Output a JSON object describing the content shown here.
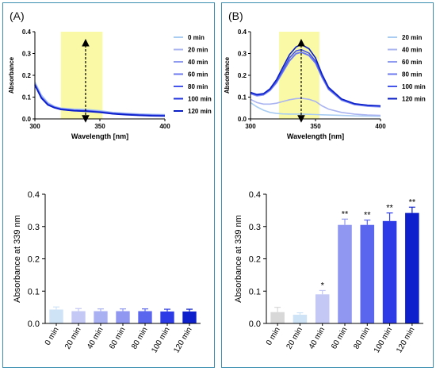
{
  "panels": [
    {
      "label": "(A)"
    },
    {
      "label": "(B)"
    }
  ],
  "chart_data": [
    {
      "id": "A-spectrum",
      "type": "line",
      "xlabel": "Wavelength [nm]",
      "ylabel": "Absorbance",
      "xlim": [
        300,
        400
      ],
      "ylim": [
        0,
        0.4
      ],
      "xticks": [
        300,
        350,
        400
      ],
      "yticks": [
        0.0,
        0.1,
        0.2,
        0.3,
        0.4
      ],
      "highlight_band": [
        320,
        352
      ],
      "arrow_x": 339,
      "arrow_range": [
        0.0,
        0.35
      ],
      "x": [
        300,
        305,
        310,
        315,
        320,
        330,
        339,
        350,
        360,
        370,
        380,
        390,
        400
      ],
      "series": [
        {
          "name": "0 min",
          "color": "#a9cdf2",
          "values": [
            0.17,
            0.11,
            0.075,
            0.058,
            0.05,
            0.045,
            0.044,
            0.038,
            0.03,
            0.026,
            0.023,
            0.021,
            0.02
          ]
        },
        {
          "name": "20 min",
          "color": "#aab4f0",
          "values": [
            0.165,
            0.105,
            0.072,
            0.056,
            0.048,
            0.042,
            0.04,
            0.035,
            0.028,
            0.024,
            0.021,
            0.019,
            0.018
          ]
        },
        {
          "name": "40 min",
          "color": "#8f9bf0",
          "values": [
            0.162,
            0.102,
            0.07,
            0.055,
            0.047,
            0.041,
            0.039,
            0.034,
            0.027,
            0.023,
            0.02,
            0.018,
            0.017
          ]
        },
        {
          "name": "60 min",
          "color": "#6b78f0",
          "values": [
            0.16,
            0.1,
            0.068,
            0.054,
            0.046,
            0.04,
            0.038,
            0.033,
            0.026,
            0.022,
            0.019,
            0.017,
            0.016
          ]
        },
        {
          "name": "80 min",
          "color": "#4455ee",
          "values": [
            0.158,
            0.098,
            0.066,
            0.053,
            0.045,
            0.039,
            0.037,
            0.032,
            0.025,
            0.021,
            0.018,
            0.016,
            0.015
          ]
        },
        {
          "name": "100 min",
          "color": "#2233e0",
          "values": [
            0.156,
            0.096,
            0.065,
            0.052,
            0.044,
            0.038,
            0.036,
            0.031,
            0.024,
            0.02,
            0.017,
            0.015,
            0.014
          ]
        },
        {
          "name": "120 min",
          "color": "#0a1fc8",
          "values": [
            0.155,
            0.095,
            0.064,
            0.051,
            0.043,
            0.037,
            0.035,
            0.03,
            0.023,
            0.019,
            0.016,
            0.014,
            0.013
          ]
        }
      ]
    },
    {
      "id": "B-spectrum",
      "type": "line",
      "xlabel": "Wavelength [nm]",
      "ylabel": "Absorbance",
      "xlim": [
        300,
        400
      ],
      "ylim": [
        0,
        0.4
      ],
      "xticks": [
        300,
        350,
        400
      ],
      "yticks": [
        0.0,
        0.1,
        0.2,
        0.3,
        0.4
      ],
      "highlight_band": [
        322,
        353
      ],
      "arrow_x": 339,
      "arrow_range": [
        0.0,
        0.35
      ],
      "x": [
        300,
        305,
        310,
        315,
        320,
        325,
        330,
        335,
        339,
        345,
        350,
        355,
        360,
        370,
        380,
        390,
        400
      ],
      "series": [
        {
          "name": "20 min",
          "color": "#a9cdf2",
          "values": [
            0.075,
            0.055,
            0.04,
            0.03,
            0.025,
            0.023,
            0.022,
            0.022,
            0.022,
            0.021,
            0.02,
            0.019,
            0.018,
            0.016,
            0.014,
            0.013,
            0.012
          ]
        },
        {
          "name": "40 min",
          "color": "#aab4f0",
          "values": [
            0.09,
            0.075,
            0.068,
            0.068,
            0.072,
            0.08,
            0.088,
            0.093,
            0.095,
            0.09,
            0.08,
            0.06,
            0.045,
            0.03,
            0.022,
            0.018,
            0.016
          ]
        },
        {
          "name": "60 min",
          "color": "#8f9bf0",
          "values": [
            0.115,
            0.105,
            0.11,
            0.13,
            0.165,
            0.215,
            0.265,
            0.298,
            0.305,
            0.29,
            0.255,
            0.19,
            0.135,
            0.085,
            0.065,
            0.058,
            0.055
          ]
        },
        {
          "name": "80 min",
          "color": "#6b78f0",
          "values": [
            0.118,
            0.108,
            0.112,
            0.132,
            0.168,
            0.218,
            0.268,
            0.3,
            0.307,
            0.292,
            0.257,
            0.192,
            0.137,
            0.087,
            0.067,
            0.06,
            0.057
          ]
        },
        {
          "name": "100 min",
          "color": "#4455ee",
          "values": [
            0.12,
            0.11,
            0.114,
            0.135,
            0.172,
            0.225,
            0.28,
            0.312,
            0.318,
            0.302,
            0.265,
            0.198,
            0.14,
            0.09,
            0.069,
            0.062,
            0.059
          ]
        },
        {
          "name": "120 min",
          "color": "#0a1fc8",
          "values": [
            0.122,
            0.112,
            0.116,
            0.138,
            0.18,
            0.238,
            0.295,
            0.33,
            0.342,
            0.322,
            0.28,
            0.205,
            0.145,
            0.092,
            0.07,
            0.063,
            0.06
          ]
        }
      ]
    },
    {
      "id": "A-bars",
      "type": "bar",
      "ylabel": "Absorbance at 339 nm",
      "ylim": [
        0,
        0.4
      ],
      "yticks": [
        0.0,
        0.1,
        0.2,
        0.3,
        0.4
      ],
      "categories": [
        "0 min",
        "20 min",
        "40 min",
        "60 min",
        "80 min",
        "100 min",
        "120 min"
      ],
      "values": [
        0.043,
        0.038,
        0.038,
        0.038,
        0.038,
        0.037,
        0.037
      ],
      "errors": [
        0.008,
        0.008,
        0.007,
        0.007,
        0.007,
        0.007,
        0.007
      ],
      "colors": [
        "#cfe3f7",
        "#c3c8f4",
        "#aab1f2",
        "#8f97f0",
        "#5a66ee",
        "#2c3be6",
        "#0d20cc"
      ],
      "significance": [
        "",
        "",
        "",
        "",
        "",
        "",
        ""
      ]
    },
    {
      "id": "B-bars",
      "type": "bar",
      "ylabel": "Absorbance at 339 nm",
      "ylim": [
        0,
        0.4
      ],
      "yticks": [
        0.0,
        0.1,
        0.2,
        0.3,
        0.4
      ],
      "categories": [
        "0 min",
        "20 min",
        "40 min",
        "60 min",
        "80 min",
        "100 min",
        "120 min"
      ],
      "values": [
        0.035,
        0.027,
        0.09,
        0.305,
        0.305,
        0.317,
        0.342
      ],
      "errors": [
        0.015,
        0.006,
        0.012,
        0.018,
        0.015,
        0.025,
        0.018
      ],
      "colors": [
        "#d8d8d8",
        "#cfe3f7",
        "#c3c8f4",
        "#8f97f0",
        "#5a66ee",
        "#2c3be6",
        "#0d20cc"
      ],
      "significance": [
        "",
        "",
        "*",
        "**",
        "**",
        "**",
        "**"
      ]
    }
  ]
}
